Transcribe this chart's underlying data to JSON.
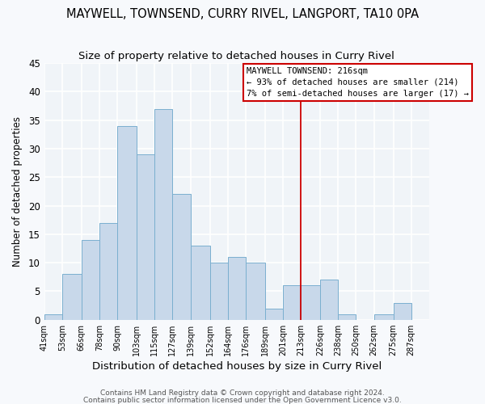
{
  "title": "MAYWELL, TOWNSEND, CURRY RIVEL, LANGPORT, TA10 0PA",
  "subtitle": "Size of property relative to detached houses in Curry Rivel",
  "xlabel": "Distribution of detached houses by size in Curry Rivel",
  "ylabel": "Number of detached properties",
  "bar_edges": [
    41,
    53,
    66,
    78,
    90,
    103,
    115,
    127,
    139,
    152,
    164,
    176,
    189,
    201,
    213,
    226,
    238,
    250,
    262,
    275,
    287,
    299
  ],
  "bar_heights": [
    1,
    8,
    14,
    17,
    34,
    29,
    37,
    22,
    13,
    10,
    11,
    10,
    2,
    6,
    6,
    7,
    1,
    0,
    1,
    3,
    0
  ],
  "bar_color": "#c8d8ea",
  "bar_edgecolor": "#7aafcf",
  "vline_x": 213,
  "vline_color": "#cc0000",
  "ylim": [
    0,
    45
  ],
  "annotation_title": "MAYWELL TOWNSEND: 216sqm",
  "annotation_line1": "← 93% of detached houses are smaller (214)",
  "annotation_line2": "7% of semi-detached houses are larger (17) →",
  "tick_labels": [
    "41sqm",
    "53sqm",
    "66sqm",
    "78sqm",
    "90sqm",
    "103sqm",
    "115sqm",
    "127sqm",
    "139sqm",
    "152sqm",
    "164sqm",
    "176sqm",
    "189sqm",
    "201sqm",
    "213sqm",
    "226sqm",
    "238sqm",
    "250sqm",
    "262sqm",
    "275sqm",
    "287sqm"
  ],
  "ytick_labels": [
    0,
    5,
    10,
    15,
    20,
    25,
    30,
    35,
    40,
    45
  ],
  "footer1": "Contains HM Land Registry data © Crown copyright and database right 2024.",
  "footer2": "Contains public sector information licensed under the Open Government Licence v3.0.",
  "background_color": "#f7f9fc",
  "plot_bg_color": "#f0f4f8",
  "grid_color": "#ffffff",
  "title_fontsize": 10.5,
  "subtitle_fontsize": 9.5,
  "xlabel_fontsize": 9.5,
  "ylabel_fontsize": 8.5,
  "tick_fontsize": 7,
  "footer_fontsize": 6.5,
  "annot_fontsize": 7.5
}
